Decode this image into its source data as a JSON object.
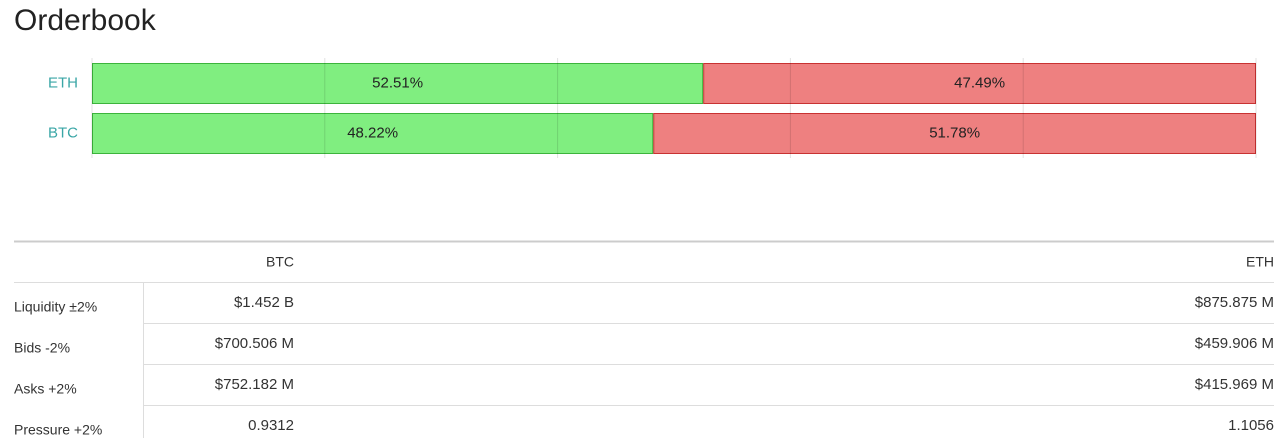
{
  "chart_data": {
    "type": "bar",
    "stacked": true,
    "orientation": "horizontal",
    "title": "Orderbook",
    "categories": [
      "ETH",
      "BTC"
    ],
    "series": [
      {
        "color": "#80ee80",
        "values": [
          52.51,
          48.22
        ],
        "value_labels": [
          "52.51%",
          "48.22%"
        ]
      },
      {
        "color": "#ee8080",
        "values": [
          47.49,
          51.78
        ],
        "value_labels": [
          "47.49%",
          "51.78%"
        ]
      }
    ],
    "xlim": [
      0,
      100
    ],
    "xticks": [
      0,
      20,
      40,
      60,
      80,
      100
    ],
    "grid": true
  },
  "table": {
    "columns": [
      "BTC",
      "ETH"
    ],
    "rows": [
      [
        "Liquidity ±2%",
        "$1.452 B",
        "$875.875 M"
      ],
      [
        "Bids -2%",
        "$700.506 M",
        "$459.906 M"
      ],
      [
        "Asks +2%",
        "$752.182 M",
        "$415.969 M"
      ],
      [
        "Pressure +2%",
        "0.9312",
        "1.1056"
      ]
    ]
  }
}
